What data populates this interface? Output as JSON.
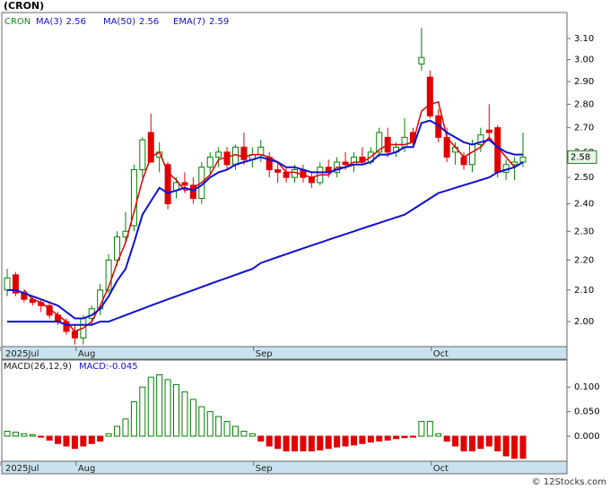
{
  "chart_data": [
    {
      "type": "candlestick",
      "title": "(CRON)",
      "ticker": "CRON",
      "log_scale": true,
      "last_price": 2.58,
      "categories": [
        "2025Jul",
        null,
        null,
        null,
        null,
        null,
        null,
        null,
        null,
        "Aug",
        null,
        null,
        null,
        null,
        null,
        null,
        null,
        null,
        null,
        null,
        null,
        null,
        null,
        null,
        null,
        null,
        null,
        null,
        null,
        null,
        "Sep",
        null,
        null,
        null,
        null,
        null,
        null,
        null,
        null,
        null,
        null,
        null,
        null,
        null,
        null,
        null,
        null,
        null,
        null,
        null,
        null,
        "Oct",
        null,
        null,
        null,
        null,
        null,
        null,
        null,
        null,
        null,
        null
      ],
      "open": [
        2.1,
        2.15,
        2.09,
        2.07,
        2.06,
        2.05,
        2.02,
        2.0,
        1.97,
        1.95,
        2.01,
        2.04,
        2.1,
        2.2,
        2.28,
        2.32,
        2.53,
        2.68,
        2.58,
        2.55,
        2.45,
        2.48,
        2.47,
        2.42,
        2.54,
        2.58,
        2.6,
        2.55,
        2.62,
        2.57,
        2.59,
        2.58,
        2.53,
        2.52,
        2.5,
        2.53,
        2.5,
        2.48,
        2.54,
        2.52,
        2.56,
        2.55,
        2.58,
        2.56,
        2.6,
        2.66,
        2.6,
        2.62,
        2.68,
        2.98,
        2.92,
        2.75,
        2.66,
        2.6,
        2.58,
        2.55,
        2.63,
        2.69,
        2.7,
        2.52,
        2.55,
        2.56
      ],
      "high": [
        2.17,
        2.16,
        2.1,
        2.08,
        2.07,
        2.06,
        2.03,
        2.01,
        1.99,
        2.02,
        2.05,
        2.12,
        2.22,
        2.3,
        2.37,
        2.55,
        2.66,
        2.76,
        2.64,
        2.56,
        2.5,
        2.52,
        2.5,
        2.56,
        2.6,
        2.62,
        2.62,
        2.63,
        2.68,
        2.62,
        2.65,
        2.6,
        2.56,
        2.54,
        2.55,
        2.55,
        2.52,
        2.56,
        2.57,
        2.58,
        2.6,
        2.6,
        2.62,
        2.62,
        2.7,
        2.7,
        2.64,
        2.74,
        2.7,
        3.15,
        2.95,
        2.78,
        2.7,
        2.64,
        2.6,
        2.65,
        2.7,
        2.8,
        2.71,
        2.57,
        2.58,
        2.68
      ],
      "low": [
        2.08,
        2.08,
        2.06,
        2.05,
        2.03,
        2.01,
        1.99,
        1.96,
        1.93,
        1.93,
        1.99,
        2.02,
        2.09,
        2.18,
        2.26,
        2.3,
        2.5,
        2.56,
        2.52,
        2.38,
        2.42,
        2.44,
        2.4,
        2.4,
        2.51,
        2.54,
        2.53,
        2.53,
        2.55,
        2.54,
        2.56,
        2.5,
        2.48,
        2.48,
        2.48,
        2.48,
        2.46,
        2.47,
        2.5,
        2.5,
        2.53,
        2.52,
        2.55,
        2.55,
        2.58,
        2.58,
        2.58,
        2.6,
        2.62,
        2.95,
        2.74,
        2.64,
        2.56,
        2.55,
        2.53,
        2.52,
        2.6,
        2.66,
        2.5,
        2.49,
        2.49,
        2.54
      ],
      "close": [
        2.14,
        2.09,
        2.07,
        2.06,
        2.05,
        2.02,
        2.0,
        1.97,
        1.95,
        2.01,
        2.04,
        2.1,
        2.2,
        2.28,
        2.3,
        2.53,
        2.65,
        2.56,
        2.6,
        2.4,
        2.48,
        2.47,
        2.42,
        2.54,
        2.58,
        2.6,
        2.55,
        2.62,
        2.57,
        2.59,
        2.62,
        2.53,
        2.52,
        2.5,
        2.53,
        2.5,
        2.48,
        2.54,
        2.52,
        2.56,
        2.55,
        2.58,
        2.56,
        2.6,
        2.68,
        2.6,
        2.62,
        2.66,
        2.64,
        3.01,
        2.75,
        2.66,
        2.58,
        2.62,
        2.55,
        2.63,
        2.67,
        2.68,
        2.52,
        2.55,
        2.56,
        2.58
      ],
      "up_color": "#008000",
      "down_color": "#e00000",
      "series": [
        {
          "name": "MA(3)",
          "color": "#e00000",
          "width": 1.5,
          "legend_value": 2.56,
          "values": [
            null,
            null,
            2.1,
            2.07,
            2.06,
            2.04,
            2.02,
            2.0,
            1.97,
            1.98,
            2.0,
            2.05,
            2.11,
            2.19,
            2.26,
            2.37,
            2.49,
            2.58,
            2.6,
            2.52,
            2.49,
            2.45,
            2.46,
            2.48,
            2.51,
            2.57,
            2.58,
            2.59,
            2.58,
            2.59,
            2.59,
            2.58,
            2.56,
            2.52,
            2.52,
            2.51,
            2.5,
            2.51,
            2.51,
            2.54,
            2.54,
            2.56,
            2.56,
            2.58,
            2.61,
            2.63,
            2.63,
            2.63,
            2.64,
            2.77,
            2.8,
            2.81,
            2.66,
            2.62,
            2.58,
            2.6,
            2.62,
            2.66,
            2.62,
            2.58,
            2.54,
            2.56
          ]
        },
        {
          "name": "MA(50)",
          "color": "#1010d0",
          "width": 2,
          "legend_value": 2.56,
          "values": [
            2.0,
            2.0,
            2.0,
            2.0,
            2.0,
            2.0,
            2.0,
            1.99,
            1.99,
            1.99,
            1.99,
            2.0,
            2.0,
            2.01,
            2.02,
            2.03,
            2.04,
            2.05,
            2.06,
            2.07,
            2.08,
            2.09,
            2.1,
            2.11,
            2.12,
            2.13,
            2.14,
            2.15,
            2.16,
            2.17,
            2.19,
            2.2,
            2.21,
            2.22,
            2.23,
            2.24,
            2.25,
            2.26,
            2.27,
            2.28,
            2.29,
            2.3,
            2.31,
            2.32,
            2.33,
            2.34,
            2.35,
            2.36,
            2.38,
            2.4,
            2.42,
            2.44,
            2.45,
            2.46,
            2.47,
            2.48,
            2.49,
            2.5,
            2.52,
            2.53,
            2.54,
            2.56
          ]
        },
        {
          "name": "EMA(7)",
          "color": "#1010d0",
          "width": 2,
          "legend_value": 2.59,
          "values": [
            2.1,
            2.1,
            2.09,
            2.08,
            2.07,
            2.06,
            2.05,
            2.03,
            2.01,
            2.01,
            2.02,
            2.04,
            2.08,
            2.13,
            2.17,
            2.26,
            2.36,
            2.41,
            2.46,
            2.44,
            2.45,
            2.46,
            2.45,
            2.47,
            2.5,
            2.52,
            2.53,
            2.55,
            2.56,
            2.57,
            2.58,
            2.57,
            2.56,
            2.54,
            2.54,
            2.53,
            2.52,
            2.52,
            2.52,
            2.53,
            2.54,
            2.55,
            2.55,
            2.56,
            2.59,
            2.59,
            2.6,
            2.62,
            2.62,
            2.72,
            2.73,
            2.71,
            2.68,
            2.66,
            2.64,
            2.63,
            2.64,
            2.65,
            2.62,
            2.6,
            2.59,
            2.59
          ]
        }
      ],
      "ylim": [
        1.924,
        3.227
      ],
      "yticks": [
        {
          "value": 2,
          "label": "2.00"
        },
        {
          "value": 2.1,
          "label": "2.10"
        },
        {
          "value": 2.2,
          "label": "2.20"
        },
        {
          "value": 2.3,
          "label": "2.30"
        },
        {
          "value": 2.4,
          "label": "2.40"
        },
        {
          "value": 2.5,
          "label": "2.50"
        },
        {
          "value": 2.6,
          "label": "2.60"
        },
        {
          "value": 2.7,
          "label": "2.70"
        },
        {
          "value": 2.8,
          "label": "2.80"
        },
        {
          "value": 2.9,
          "label": "2.90"
        },
        {
          "value": 3,
          "label": "3.00"
        },
        {
          "value": 3.1,
          "label": "3.10"
        }
      ]
    },
    {
      "type": "bar",
      "title": "MACD(26,12,9)",
      "macd_label": "MACD:",
      "macd_value": -0.045,
      "categories": [
        "2025Jul",
        null,
        null,
        null,
        null,
        null,
        null,
        null,
        null,
        "Aug",
        null,
        null,
        null,
        null,
        null,
        null,
        null,
        null,
        null,
        null,
        null,
        null,
        null,
        null,
        null,
        null,
        null,
        null,
        null,
        null,
        "Sep",
        null,
        null,
        null,
        null,
        null,
        null,
        null,
        null,
        null,
        null,
        null,
        null,
        null,
        null,
        null,
        null,
        null,
        null,
        null,
        null,
        "Oct",
        null,
        null,
        null,
        null,
        null,
        null,
        null,
        null,
        null,
        null
      ],
      "values": [
        0.01,
        0.008,
        0.005,
        0.003,
        -0.002,
        -0.008,
        -0.015,
        -0.02,
        -0.025,
        -0.02,
        -0.015,
        -0.01,
        0.005,
        0.02,
        0.035,
        0.07,
        0.1,
        0.12,
        0.125,
        0.115,
        0.105,
        0.09,
        0.075,
        0.06,
        0.05,
        0.04,
        0.03,
        0.02,
        0.01,
        0.005,
        -0.01,
        -0.02,
        -0.025,
        -0.03,
        -0.03,
        -0.03,
        -0.03,
        -0.028,
        -0.025,
        -0.022,
        -0.02,
        -0.018,
        -0.015,
        -0.012,
        -0.01,
        -0.008,
        -0.005,
        -0.003,
        -0.002,
        0.03,
        0.03,
        0.005,
        -0.01,
        -0.02,
        -0.03,
        -0.03,
        -0.025,
        -0.02,
        -0.03,
        -0.04,
        -0.045,
        -0.045
      ],
      "positive_color": "#008000",
      "negative_color": "#e00000",
      "ylim": [
        -0.051,
        0.155
      ],
      "yticks": [
        {
          "value": 0,
          "label": "0.000"
        },
        {
          "value": 0.05,
          "label": "0.050"
        },
        {
          "value": 0.1,
          "label": "0.100"
        }
      ]
    }
  ],
  "footer": "© 12Stocks.com"
}
